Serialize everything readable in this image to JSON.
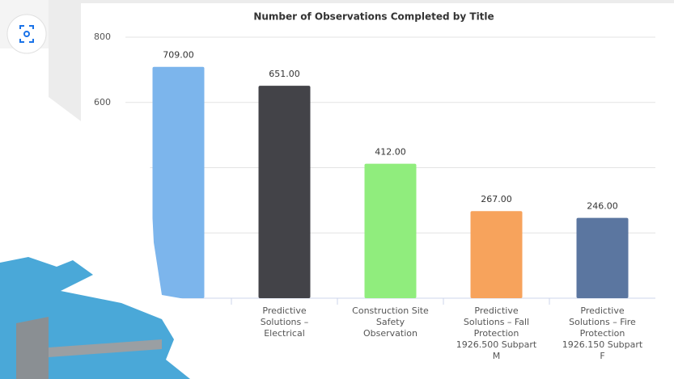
{
  "chart_data": {
    "type": "bar",
    "title": "Number of Observations Completed by Title",
    "categories": [
      null,
      "Predictive Solutions – Electrical",
      "Construction Site Safety Observation",
      "Predictive Solutions – Fall Protection 1926.500 Subpart M",
      "Predictive Solutions – Fire Protection 1926.150 Subpart F"
    ],
    "values": [
      709,
      651,
      412,
      267,
      246
    ],
    "value_labels": [
      "709.00",
      "651.00",
      "412.00",
      "267.00",
      "246.00"
    ],
    "colors": [
      "#7cb5ec",
      "#434348",
      "#90ed7d",
      "#f7a35c",
      "#5b76a0"
    ],
    "ylim": [
      0,
      800
    ],
    "yticks": [
      0,
      200,
      400,
      600,
      800
    ],
    "grid": true
  }
}
